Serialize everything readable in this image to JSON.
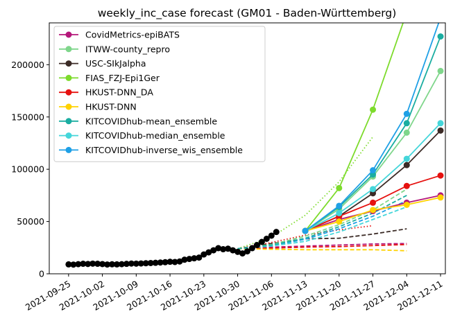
{
  "chart_data": {
    "type": "line",
    "title": "weekly_inc_case forecast (GM01 - Baden-Württemberg)",
    "xlabel": "",
    "ylabel": "",
    "x_ticks": [
      "2021-09-25",
      "2021-10-02",
      "2021-10-09",
      "2021-10-16",
      "2021-10-23",
      "2021-10-30",
      "2021-11-06",
      "2021-11-13",
      "2021-11-20",
      "2021-11-27",
      "2021-12-04",
      "2021-12-11"
    ],
    "xlim": [
      "2021-09-21",
      "2021-12-12"
    ],
    "y_ticks": [
      0,
      50000,
      100000,
      150000,
      200000
    ],
    "y_tick_labels": [
      "0",
      "50000",
      "100000",
      "150000",
      "200000"
    ],
    "ylim": [
      0,
      240000
    ],
    "grid": false,
    "legend_position": "top-left",
    "truth": {
      "color": "#000000",
      "x": [
        "2021-09-25",
        "2021-09-26",
        "2021-09-27",
        "2021-09-28",
        "2021-09-29",
        "2021-09-30",
        "2021-10-01",
        "2021-10-02",
        "2021-10-03",
        "2021-10-04",
        "2021-10-05",
        "2021-10-06",
        "2021-10-07",
        "2021-10-08",
        "2021-10-09",
        "2021-10-10",
        "2021-10-11",
        "2021-10-12",
        "2021-10-13",
        "2021-10-14",
        "2021-10-15",
        "2021-10-16",
        "2021-10-17",
        "2021-10-18",
        "2021-10-19",
        "2021-10-20",
        "2021-10-21",
        "2021-10-22",
        "2021-10-23",
        "2021-10-24",
        "2021-10-25",
        "2021-10-26",
        "2021-10-27",
        "2021-10-28",
        "2021-10-29",
        "2021-10-30",
        "2021-10-31",
        "2021-11-01",
        "2021-11-02",
        "2021-11-03",
        "2021-11-04",
        "2021-11-05",
        "2021-11-06",
        "2021-11-07"
      ],
      "y": [
        9000,
        8800,
        9200,
        9600,
        9400,
        9700,
        9600,
        9300,
        8900,
        9100,
        9000,
        9200,
        9500,
        9800,
        9700,
        9900,
        10100,
        10300,
        10500,
        10800,
        11100,
        11500,
        11300,
        11800,
        13500,
        14200,
        14800,
        15500,
        18500,
        20500,
        22500,
        24500,
        23500,
        24000,
        22500,
        21000,
        19500,
        21500,
        24500,
        27500,
        30500,
        33500,
        36500,
        40000
      ]
    },
    "series": [
      {
        "name": "CovidMetrics-epiBATS",
        "color": "#b5177a",
        "x": [
          "2021-11-13",
          "2021-11-20",
          "2021-11-27",
          "2021-12-04",
          "2021-12-11"
        ],
        "y": [
          41000,
          52000,
          60000,
          68000,
          75000
        ]
      },
      {
        "name": "ITWW-county_repro",
        "color": "#7fd68b",
        "x": [
          "2021-11-13",
          "2021-11-20",
          "2021-11-27",
          "2021-12-04",
          "2021-12-11"
        ],
        "y": [
          41000,
          62000,
          93000,
          135000,
          194000
        ]
      },
      {
        "name": "USC-SIkJalpha",
        "color": "#3b2b26",
        "x": [
          "2021-11-13",
          "2021-11-20",
          "2021-11-27",
          "2021-12-04",
          "2021-12-11"
        ],
        "y": [
          41000,
          55000,
          77000,
          104000,
          137000
        ]
      },
      {
        "name": "FIAS_FZJ-Epi1Ger",
        "color": "#7ddb2c",
        "x": [
          "2021-11-13",
          "2021-11-20",
          "2021-11-27",
          "2021-12-04"
        ],
        "y": [
          41000,
          82000,
          157000,
          250000
        ]
      },
      {
        "name": "HKUST-DNN_DA",
        "color": "#e6110f",
        "x": [
          "2021-11-13",
          "2021-11-20",
          "2021-11-27",
          "2021-12-04",
          "2021-12-11"
        ],
        "y": [
          41000,
          55000,
          68000,
          84000,
          94000
        ]
      },
      {
        "name": "HKUST-DNN",
        "color": "#ffd200",
        "x": [
          "2021-11-13",
          "2021-11-20",
          "2021-11-27",
          "2021-12-04",
          "2021-12-11"
        ],
        "y": [
          41000,
          50000,
          61000,
          66000,
          73000
        ]
      },
      {
        "name": "KITCOVIDhub-mean_ensemble",
        "color": "#1aada1",
        "x": [
          "2021-11-13",
          "2021-11-20",
          "2021-11-27",
          "2021-12-04",
          "2021-12-11"
        ],
        "y": [
          41000,
          64000,
          95000,
          144000,
          227000
        ]
      },
      {
        "name": "KITCOVIDhub-median_ensemble",
        "color": "#45d6da",
        "x": [
          "2021-11-13",
          "2021-11-20",
          "2021-11-27",
          "2021-12-04",
          "2021-12-11"
        ],
        "y": [
          41000,
          58000,
          81000,
          110000,
          144000
        ]
      },
      {
        "name": "KITCOVIDhub-inverse_wis_ensemble",
        "color": "#1fa0e6",
        "x": [
          "2021-11-13",
          "2021-11-20",
          "2021-11-27",
          "2021-12-04",
          "2021-12-11"
        ],
        "y": [
          41000,
          65000,
          99000,
          153000,
          245000
        ]
      }
    ],
    "past_forecasts": [
      {
        "color": "#b5177a",
        "style": "dashed",
        "x": [
          "2021-10-30",
          "2021-11-06",
          "2021-11-13",
          "2021-11-20",
          "2021-11-27",
          "2021-12-04"
        ],
        "y": [
          24000,
          25500,
          26500,
          27500,
          28500,
          29000
        ]
      },
      {
        "color": "#3b2b26",
        "style": "dashed",
        "x": [
          "2021-10-30",
          "2021-11-06",
          "2021-11-13",
          "2021-11-20",
          "2021-11-27",
          "2021-12-04"
        ],
        "y": [
          24000,
          29000,
          33500,
          34000,
          38000,
          43000
        ]
      },
      {
        "color": "#e6110f",
        "style": "dashed",
        "x": [
          "2021-10-30",
          "2021-11-06",
          "2021-11-13",
          "2021-11-20",
          "2021-11-27",
          "2021-12-04"
        ],
        "y": [
          24000,
          24500,
          25500,
          26000,
          27000,
          28000
        ]
      },
      {
        "color": "#ffd200",
        "style": "dashed",
        "x": [
          "2021-10-30",
          "2021-11-06",
          "2021-11-13",
          "2021-11-20",
          "2021-11-27",
          "2021-12-04"
        ],
        "y": [
          24000,
          23500,
          23000,
          23000,
          23000,
          22000
        ]
      },
      {
        "color": "#7ddb2c",
        "style": "dotted",
        "x": [
          "2021-10-30",
          "2021-11-06",
          "2021-11-13",
          "2021-11-20",
          "2021-11-27"
        ],
        "y": [
          24000,
          35000,
          56000,
          88000,
          131000
        ]
      },
      {
        "color": "#e6110f",
        "style": "dotted",
        "x": [
          "2021-10-30",
          "2021-11-06",
          "2021-11-13",
          "2021-11-20",
          "2021-11-27"
        ],
        "y": [
          24000,
          30000,
          37000,
          42000,
          46000
        ]
      },
      {
        "color": "#7fd68b",
        "style": "dashed",
        "x": [
          "2021-10-30",
          "2021-11-06",
          "2021-11-13",
          "2021-11-20",
          "2021-11-27",
          "2021-12-04"
        ],
        "y": [
          24000,
          28000,
          36000,
          47000,
          61000,
          81000
        ]
      },
      {
        "color": "#1fa0e6",
        "style": "dashed",
        "x": [
          "2021-10-30",
          "2021-11-06",
          "2021-11-13",
          "2021-11-20",
          "2021-11-27",
          "2021-12-04"
        ],
        "y": [
          24000,
          27000,
          33000,
          43000,
          55000,
          70000
        ]
      },
      {
        "color": "#45d6da",
        "style": "dashed",
        "x": [
          "2021-10-30",
          "2021-11-06",
          "2021-11-13",
          "2021-11-20",
          "2021-11-27",
          "2021-12-04"
        ],
        "y": [
          24000,
          26500,
          31000,
          40000,
          52000,
          64000
        ]
      },
      {
        "color": "#1aada1",
        "style": "dashed",
        "x": [
          "2021-10-30",
          "2021-11-06",
          "2021-11-13",
          "2021-11-20",
          "2021-11-27",
          "2021-12-04"
        ],
        "y": [
          24000,
          27500,
          34000,
          45000,
          58000,
          75000
        ]
      }
    ]
  }
}
